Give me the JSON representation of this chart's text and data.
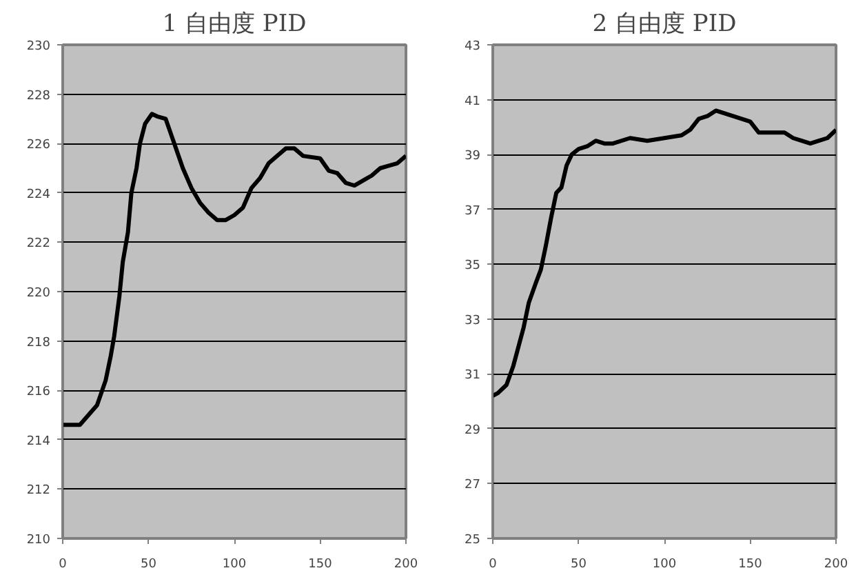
{
  "chart_data": [
    {
      "type": "line",
      "title": "1 自由度 PID",
      "xlim": [
        0,
        200
      ],
      "xticks": [
        0,
        50,
        100,
        150,
        200
      ],
      "ylim": [
        210,
        230
      ],
      "yticks": [
        210,
        212,
        214,
        216,
        218,
        220,
        222,
        224,
        226,
        228,
        230
      ],
      "grid": "y",
      "series": [
        {
          "color": "#000000",
          "x": [
            0,
            10,
            15,
            20,
            25,
            28,
            30,
            33,
            35,
            38,
            40,
            43,
            45,
            48,
            52,
            55,
            60,
            63,
            67,
            70,
            75,
            80,
            85,
            90,
            95,
            100,
            105,
            110,
            115,
            120,
            125,
            130,
            135,
            140,
            150,
            155,
            160,
            165,
            170,
            175,
            180,
            185,
            190,
            195,
            200
          ],
          "values": [
            214.6,
            214.6,
            215.0,
            215.4,
            216.4,
            217.4,
            218.2,
            219.8,
            221.2,
            222.4,
            224.0,
            225.0,
            226.0,
            226.8,
            227.2,
            227.1,
            227.0,
            226.4,
            225.6,
            225.0,
            224.2,
            223.6,
            223.2,
            222.9,
            222.9,
            223.1,
            223.4,
            224.2,
            224.6,
            225.2,
            225.5,
            225.8,
            225.8,
            225.5,
            225.4,
            224.9,
            224.8,
            224.4,
            224.3,
            224.5,
            224.7,
            225.0,
            225.1,
            225.2,
            225.5
          ]
        }
      ]
    },
    {
      "type": "line",
      "title": "2 自由度 PID",
      "xlim": [
        0,
        200
      ],
      "xticks": [
        0,
        50,
        100,
        150,
        200
      ],
      "ylim": [
        25,
        43
      ],
      "yticks": [
        25,
        27,
        29,
        31,
        33,
        35,
        37,
        39,
        41,
        43
      ],
      "grid": "y",
      "series": [
        {
          "color": "#000000",
          "x": [
            0,
            3,
            8,
            12,
            15,
            18,
            21,
            25,
            28,
            31,
            34,
            37,
            40,
            43,
            46,
            50,
            55,
            60,
            65,
            70,
            80,
            90,
            100,
            110,
            115,
            120,
            125,
            130,
            135,
            140,
            150,
            155,
            160,
            170,
            175,
            180,
            185,
            190,
            195,
            200
          ],
          "values": [
            30.2,
            30.3,
            30.6,
            31.3,
            32.0,
            32.7,
            33.6,
            34.3,
            34.8,
            35.7,
            36.7,
            37.6,
            37.8,
            38.6,
            39.0,
            39.2,
            39.3,
            39.5,
            39.4,
            39.4,
            39.6,
            39.5,
            39.6,
            39.7,
            39.9,
            40.3,
            40.4,
            40.6,
            40.5,
            40.4,
            40.2,
            39.8,
            39.8,
            39.8,
            39.6,
            39.5,
            39.4,
            39.5,
            39.6,
            39.9
          ]
        }
      ]
    }
  ]
}
